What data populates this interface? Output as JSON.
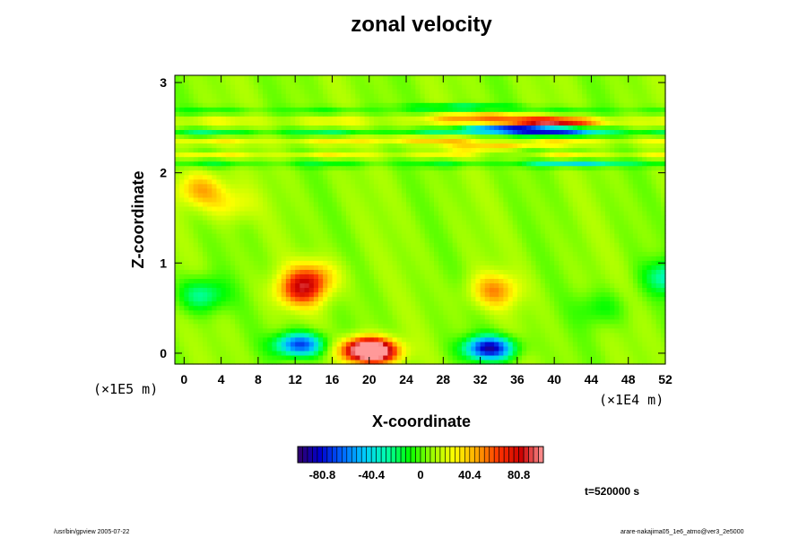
{
  "chart_data": {
    "type": "heatmap",
    "title": "zonal velocity",
    "xlabel": "X-coordinate",
    "ylabel": "Z-coordinate",
    "x_unit": "(×1E4 m)",
    "y_unit": "(×1E5 m)",
    "xlim": [
      -1,
      52
    ],
    "ylim": [
      -0.12,
      3.08
    ],
    "x_ticks": [
      "0",
      "4",
      "8",
      "12",
      "16",
      "20",
      "24",
      "28",
      "32",
      "36",
      "40",
      "44",
      "48",
      "52"
    ],
    "y_ticks": [
      "0",
      "1",
      "2",
      "3"
    ],
    "colorbar": {
      "range": [
        -101,
        101
      ],
      "ticks": [
        "-80.8",
        "-40.4",
        "0",
        "40.4",
        "80.8"
      ],
      "colors": [
        "#330066",
        "#0000cc",
        "#0066ff",
        "#00ccff",
        "#00ffaa",
        "#00ff00",
        "#99ff00",
        "#ffff00",
        "#ffaa00",
        "#ff3300",
        "#cc0000",
        "#ff9999"
      ]
    },
    "background_value": 8,
    "features": [
      {
        "x": 20.5,
        "z": 0.02,
        "value": 100
      },
      {
        "x": 19.5,
        "z": 0.05,
        "value": 75
      },
      {
        "x": 12.5,
        "z": 0.7,
        "value": 62
      },
      {
        "x": 14.0,
        "z": 0.85,
        "value": 48
      },
      {
        "x": 33.5,
        "z": 0.7,
        "value": 48
      },
      {
        "x": 1.8,
        "z": 1.82,
        "value": 45
      },
      {
        "x": 5.0,
        "z": 1.65,
        "value": 28
      },
      {
        "x": 12.5,
        "z": 0.1,
        "value": -72
      },
      {
        "x": 33.0,
        "z": 0.06,
        "value": -88
      },
      {
        "x": 2.0,
        "z": 0.65,
        "value": -28
      },
      {
        "x": 52.5,
        "z": 0.85,
        "value": -32
      },
      {
        "x": 45.0,
        "z": 0.5,
        "value": -10
      },
      {
        "x": 43.0,
        "z": 2.11,
        "value": -25
      },
      {
        "x": 35.0,
        "z": 2.25,
        "value": -55
      },
      {
        "x": 34.0,
        "z": 2.27,
        "value": 95
      },
      {
        "x": 40.0,
        "z": 2.44,
        "value": -42
      },
      {
        "x": 36.0,
        "z": 2.49,
        "value": -95
      },
      {
        "x": 39.0,
        "z": 2.57,
        "value": 90
      },
      {
        "x": 33.0,
        "z": 2.63,
        "value": 60
      },
      {
        "x": 30.0,
        "z": 2.74,
        "value": -20
      },
      {
        "x": 25.0,
        "z": 2.38,
        "value": 30
      }
    ],
    "bands": [
      {
        "z": 2.1,
        "width": 0.04,
        "value": -20
      },
      {
        "z": 2.2,
        "width": 0.03,
        "value": 22
      },
      {
        "z": 2.34,
        "width": 0.03,
        "value": 28
      },
      {
        "z": 2.45,
        "width": 0.03,
        "value": -28
      },
      {
        "z": 2.58,
        "width": 0.03,
        "value": 30
      },
      {
        "z": 2.7,
        "width": 0.04,
        "value": -15
      }
    ]
  },
  "time_label": "t=520000 s",
  "footer": {
    "left": "/usr/bin/gpview 2005-07-22",
    "right": "arare-nakajima05_1e6_atmo@ver3_2e5000"
  }
}
